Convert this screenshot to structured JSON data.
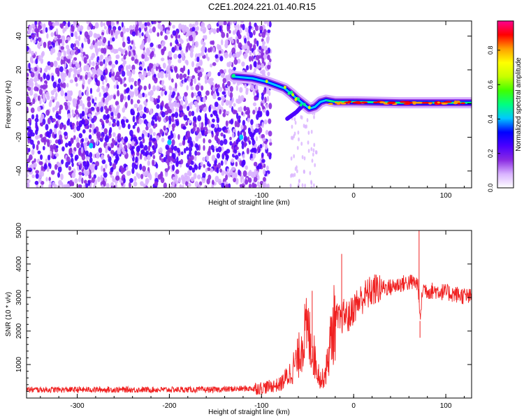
{
  "title": "C2E1.2024.221.01.40.R15",
  "chart_data": [
    {
      "type": "heatmap",
      "xlabel": "Height of straight line (km)",
      "ylabel": "Frequency (Hz)",
      "xlim": [
        -355,
        128
      ],
      "ylim": [
        -50,
        49
      ],
      "xticks": [
        -300,
        -200,
        -100,
        0,
        100
      ],
      "yticks": [
        -40,
        -20,
        0,
        20,
        40
      ],
      "colorbar": {
        "label": "Normalized spectral amplitude",
        "range": [
          0,
          0.97
        ],
        "ticks": [
          0.0,
          0.2,
          0.4,
          0.6,
          0.8
        ],
        "colors": [
          "#ffffff",
          "#d9b3ff",
          "#8a2be2",
          "#4b00ff",
          "#0000ff",
          "#00c8ff",
          "#00ff80",
          "#40ff00",
          "#c8ff00",
          "#ffff00",
          "#ffa000",
          "#ff0000",
          "#ff0090"
        ]
      },
      "background_noise": {
        "x_range": [
          -355,
          -90
        ],
        "y_range": [
          -50,
          49
        ],
        "dense_band_y": [
          -40,
          -5
        ],
        "hotspots": [
          {
            "x": -285,
            "y": -25
          },
          {
            "x": -200,
            "y": -23
          },
          {
            "x": -122,
            "y": -20
          }
        ]
      },
      "signal_track": [
        {
          "x": -130,
          "y": 16
        },
        {
          "x": -110,
          "y": 15
        },
        {
          "x": -95,
          "y": 13
        },
        {
          "x": -85,
          "y": 11
        },
        {
          "x": -75,
          "y": 9
        },
        {
          "x": -68,
          "y": 6
        },
        {
          "x": -62,
          "y": 3
        },
        {
          "x": -55,
          "y": 0
        },
        {
          "x": -48,
          "y": -3
        },
        {
          "x": -42,
          "y": -2
        },
        {
          "x": -36,
          "y": 1
        },
        {
          "x": -30,
          "y": 2
        },
        {
          "x": -20,
          "y": 1
        },
        {
          "x": 0,
          "y": 1
        },
        {
          "x": 50,
          "y": 0.5
        },
        {
          "x": 100,
          "y": 0.5
        },
        {
          "x": 128,
          "y": 0.5
        }
      ],
      "secondary_branch": [
        {
          "x": -72,
          "y": -9
        },
        {
          "x": -62,
          "y": -5
        },
        {
          "x": -55,
          "y": -1
        }
      ]
    },
    {
      "type": "line",
      "xlabel": "Height of straight line (km)",
      "ylabel": "SNR (10 * v/v)",
      "xlim": [
        -355,
        128
      ],
      "ylim": [
        0,
        5000
      ],
      "xticks": [
        -300,
        -200,
        -100,
        0,
        100
      ],
      "yticks": [
        1000,
        2000,
        3000,
        4000,
        5000
      ],
      "series": [
        {
          "color": "#f02020",
          "x": [
            -355,
            -300,
            -250,
            -200,
            -150,
            -120,
            -100,
            -90,
            -80,
            -70,
            -60,
            -55,
            -50,
            -45,
            -40,
            -35,
            -30,
            -25,
            -20,
            -15,
            -10,
            -5,
            0,
            10,
            20,
            30,
            40,
            50,
            60,
            65,
            70,
            72,
            75,
            80,
            90,
            100,
            110,
            128
          ],
          "y": [
            250,
            250,
            250,
            250,
            250,
            280,
            300,
            350,
            400,
            700,
            1200,
            1800,
            2000,
            1500,
            900,
            500,
            800,
            1700,
            2400,
            2300,
            2500,
            2400,
            2700,
            3000,
            3200,
            3300,
            3300,
            3400,
            3450,
            3450,
            3400,
            2300,
            3300,
            3200,
            3200,
            3150,
            3100,
            3000
          ]
        }
      ],
      "spikes": [
        {
          "x": -45,
          "y": 3200
        },
        {
          "x": -13,
          "y": 4300
        },
        {
          "x": 71,
          "y": 5050
        },
        {
          "x": 72,
          "y": 1800
        }
      ]
    }
  ]
}
